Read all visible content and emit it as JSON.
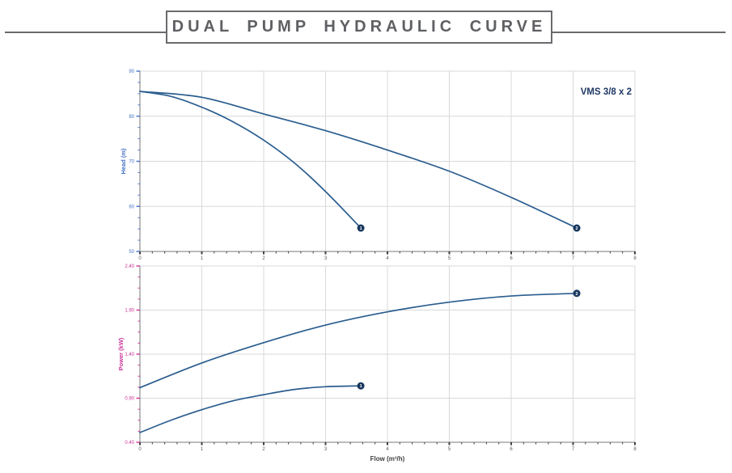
{
  "title": "DUAL PUMP HYDRAULIC CURVE",
  "colors": {
    "curve": "#2a5d8f",
    "marker_fill": "#17375e",
    "marker_text": "#ffffff",
    "grid": "#d9d9d9",
    "axis_line": "#a6a6a6",
    "tick_mark_dark": "#3f3f3f",
    "tick_text": "#595959",
    "axis_title_dark": "#3f3f3f",
    "title_text": "#5f6063",
    "rule": "#6a6b6e",
    "model_label": "#1f3864"
  },
  "chart_data": [
    {
      "type": "line",
      "name": "head-vs-flow",
      "title": "",
      "xlabel": "",
      "ylabel": "Head (m)",
      "accent_color": "#4472c4",
      "xlim": [
        0,
        8
      ],
      "ylim": [
        50,
        90
      ],
      "grid": true,
      "legend": "none",
      "annotation": "VMS 3/8 x 2",
      "x_ticks": [
        0,
        1,
        2,
        3,
        4,
        5,
        6,
        7,
        8
      ],
      "x_tick_labels": [
        "0",
        "1",
        "2",
        "3",
        "4",
        "5",
        "6",
        "7",
        "8"
      ],
      "x_minor_step": 0.2,
      "y_ticks": [
        50,
        60,
        70,
        80,
        90
      ],
      "y_tick_labels": [
        "50",
        "60",
        "70",
        "80",
        "90"
      ],
      "y_minor_step": 2.5,
      "series": [
        {
          "name": "1",
          "x": [
            0,
            0.5,
            1,
            1.5,
            2,
            2.5,
            3,
            3.57
          ],
          "y": [
            85.5,
            84.4,
            82.0,
            78.8,
            74.7,
            69.6,
            63.3,
            55.2
          ]
        },
        {
          "name": "2",
          "x": [
            0,
            1,
            2,
            3,
            4,
            5,
            6,
            7.06
          ],
          "y": [
            85.5,
            84.2,
            80.5,
            76.8,
            72.5,
            67.8,
            62.0,
            55.2
          ]
        }
      ]
    },
    {
      "type": "line",
      "name": "power-vs-flow",
      "title": "",
      "xlabel": "Flow (m³/h)",
      "ylabel": "Power (kW)",
      "accent_color": "#cc3399",
      "xlim": [
        0,
        8
      ],
      "ylim": [
        0.4,
        2.4
      ],
      "grid": true,
      "legend": "none",
      "annotation": "",
      "x_ticks": [
        0,
        1,
        2,
        3,
        4,
        5,
        6,
        7,
        8
      ],
      "x_tick_labels": [
        "0",
        "1",
        "2",
        "3",
        "4",
        "5",
        "6",
        "7",
        "8"
      ],
      "x_minor_step": 0.2,
      "y_ticks": [
        0.4,
        0.9,
        1.4,
        1.9,
        2.4
      ],
      "y_tick_labels": [
        "0.40",
        "0.90",
        "1.40",
        "1.90",
        "2.40"
      ],
      "y_minor_step": 0.125,
      "series": [
        {
          "name": "1",
          "x": [
            0,
            0.5,
            1,
            1.5,
            2,
            2.5,
            3,
            3.57
          ],
          "y": [
            0.51,
            0.65,
            0.77,
            0.87,
            0.94,
            1.0,
            1.03,
            1.04
          ]
        },
        {
          "name": "2",
          "x": [
            0,
            1,
            2,
            3,
            4,
            5,
            6,
            7.06
          ],
          "y": [
            1.02,
            1.3,
            1.53,
            1.73,
            1.88,
            1.99,
            2.06,
            2.09
          ]
        }
      ]
    }
  ]
}
